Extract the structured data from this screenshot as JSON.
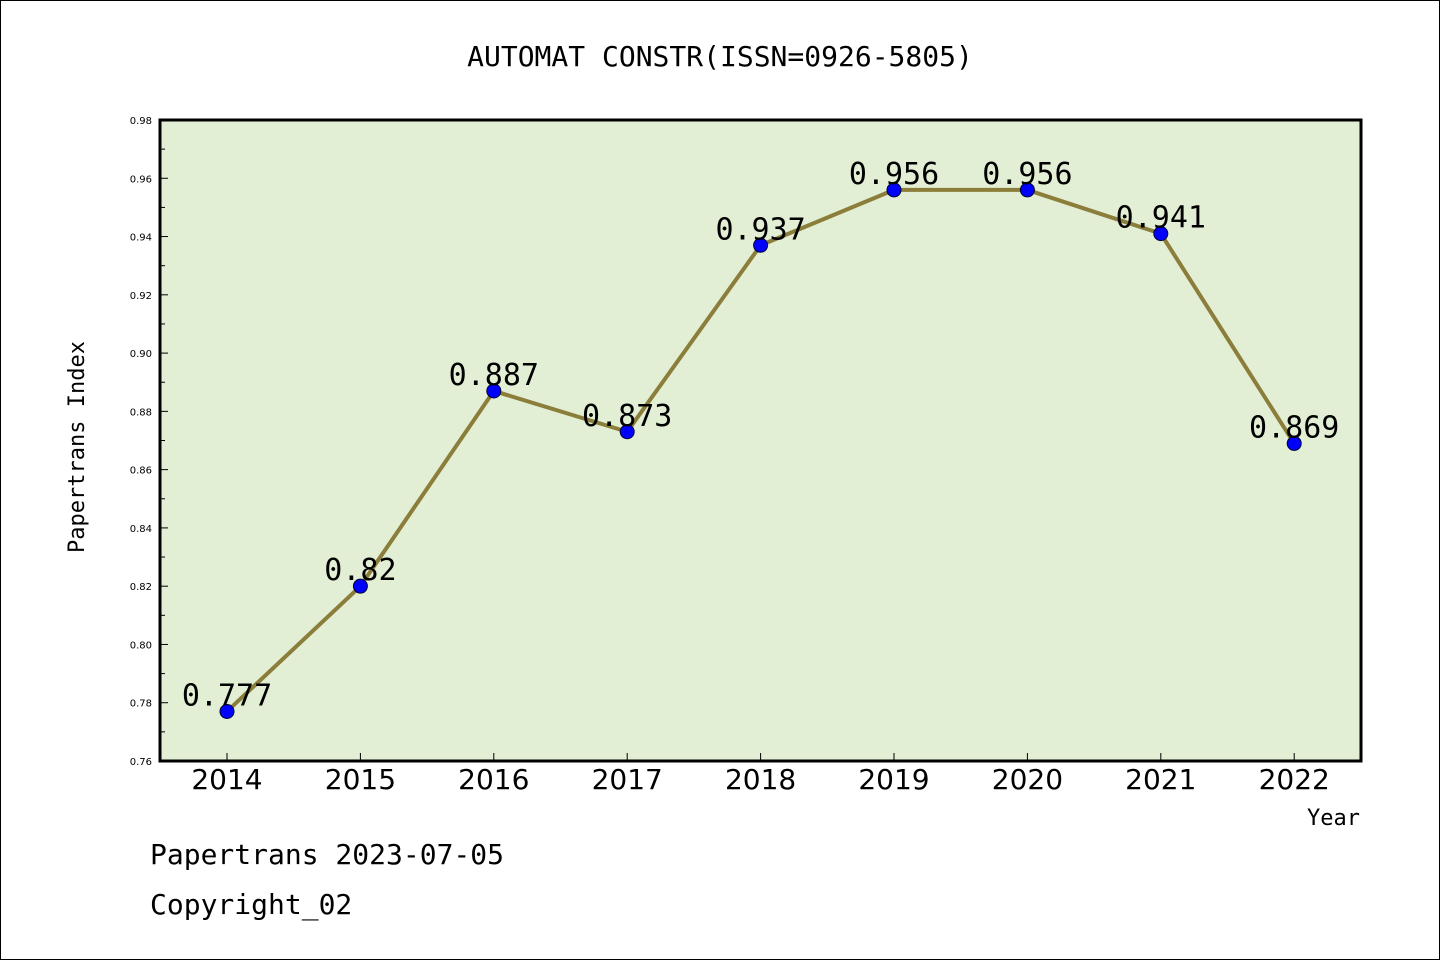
{
  "chart_data": {
    "type": "line",
    "title": "AUTOMAT CONSTR(ISSN=0926-5805)",
    "xlabel": "Year",
    "ylabel": "Papertrans Index",
    "categories": [
      "2014",
      "2015",
      "2016",
      "2017",
      "2018",
      "2019",
      "2020",
      "2021",
      "2022"
    ],
    "values": [
      0.777,
      0.82,
      0.887,
      0.873,
      0.937,
      0.956,
      0.956,
      0.941,
      0.869
    ],
    "data_labels": [
      "0.777",
      "0.82",
      "0.887",
      "0.873",
      "0.937",
      "0.956",
      "0.956",
      "0.941",
      "0.869"
    ],
    "ylim": [
      0.76,
      0.98
    ],
    "yticks": [
      "0.76",
      "0.78",
      "0.80",
      "0.82",
      "0.84",
      "0.86",
      "0.88",
      "0.90",
      "0.92",
      "0.94",
      "0.96",
      "0.98"
    ],
    "grid": false,
    "colors": {
      "plot_background": "#e2efd5",
      "line": "#8b7d3a",
      "marker": "#0000ff"
    }
  },
  "footer": {
    "stamp": "Papertrans 2023-07-05",
    "copyright": "Copyright_02"
  }
}
